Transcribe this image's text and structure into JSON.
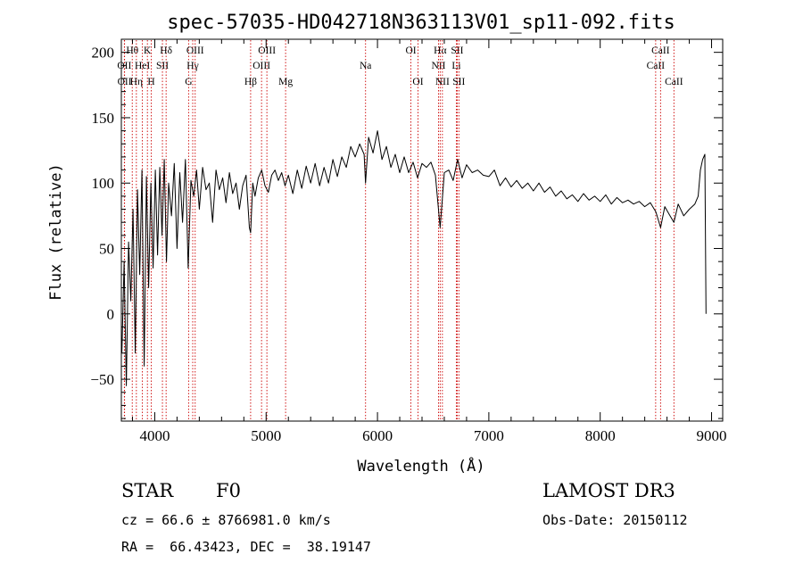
{
  "chart_data": {
    "type": "line",
    "title": "spec-57035-HD042718N363113V01_sp11-092.fits",
    "xlabel": "Wavelength (Å)",
    "ylabel": "Flux (relative)",
    "xlim": [
      3700,
      9100
    ],
    "ylim": [
      -82,
      210
    ],
    "xticks": [
      4000,
      5000,
      6000,
      7000,
      8000,
      9000
    ],
    "xtick_labels": [
      "4000",
      "5000",
      "6000",
      "7000",
      "8000",
      "9000"
    ],
    "yticks": [
      -50,
      0,
      50,
      100,
      150,
      200
    ],
    "ytick_labels": [
      "−50",
      "0",
      "50",
      "100",
      "150",
      "200"
    ],
    "spectrum": {
      "wavelength": [
        3705,
        3725,
        3745,
        3765,
        3785,
        3805,
        3825,
        3845,
        3865,
        3885,
        3905,
        3925,
        3945,
        3965,
        3985,
        4005,
        4025,
        4045,
        4065,
        4085,
        4105,
        4125,
        4150,
        4175,
        4200,
        4225,
        4250,
        4275,
        4300,
        4325,
        4350,
        4375,
        4400,
        4430,
        4460,
        4490,
        4520,
        4550,
        4580,
        4610,
        4640,
        4670,
        4700,
        4730,
        4760,
        4790,
        4820,
        4850,
        4861,
        4880,
        4900,
        4930,
        4960,
        4990,
        5020,
        5050,
        5080,
        5110,
        5140,
        5170,
        5200,
        5240,
        5280,
        5320,
        5360,
        5400,
        5440,
        5480,
        5520,
        5560,
        5600,
        5640,
        5680,
        5720,
        5760,
        5800,
        5840,
        5880,
        5893,
        5920,
        5960,
        6000,
        6040,
        6080,
        6120,
        6160,
        6200,
        6240,
        6280,
        6320,
        6360,
        6400,
        6440,
        6480,
        6520,
        6563,
        6600,
        6640,
        6680,
        6720,
        6760,
        6800,
        6850,
        6900,
        6950,
        7000,
        7050,
        7100,
        7150,
        7200,
        7250,
        7300,
        7350,
        7400,
        7450,
        7500,
        7550,
        7600,
        7650,
        7700,
        7750,
        7800,
        7850,
        7900,
        7950,
        8000,
        8050,
        8100,
        8150,
        8200,
        8250,
        8300,
        8350,
        8400,
        8450,
        8500,
        8542,
        8580,
        8620,
        8662,
        8700,
        8750,
        8800,
        8850,
        8880,
        8900,
        8920,
        8940,
        8950
      ],
      "flux": [
        -30,
        40,
        -55,
        55,
        10,
        80,
        -30,
        95,
        30,
        110,
        -40,
        105,
        20,
        100,
        35,
        110,
        45,
        112,
        60,
        118,
        40,
        100,
        75,
        115,
        50,
        108,
        70,
        118,
        35,
        102,
        90,
        110,
        80,
        112,
        95,
        100,
        70,
        110,
        95,
        104,
        85,
        108,
        92,
        100,
        80,
        98,
        106,
        66,
        62,
        100,
        90,
        104,
        110,
        98,
        93,
        106,
        110,
        102,
        108,
        98,
        106,
        92,
        110,
        96,
        113,
        100,
        115,
        98,
        112,
        100,
        118,
        105,
        120,
        112,
        128,
        120,
        130,
        122,
        100,
        135,
        123,
        140,
        118,
        128,
        112,
        122,
        108,
        120,
        108,
        116,
        104,
        115,
        112,
        116,
        106,
        66,
        108,
        110,
        102,
        118,
        104,
        114,
        108,
        110,
        106,
        105,
        110,
        98,
        104,
        97,
        102,
        96,
        100,
        94,
        100,
        93,
        97,
        90,
        94,
        88,
        91,
        86,
        92,
        87,
        90,
        86,
        91,
        84,
        89,
        85,
        87,
        84,
        86,
        82,
        85,
        78,
        66,
        82,
        76,
        70,
        84,
        75,
        80,
        84,
        90,
        110,
        118,
        122,
        0
      ],
      "color": "#000000"
    },
    "lines": [
      {
        "label": "Hθ",
        "wl": 3798,
        "row": 0
      },
      {
        "label": "OII",
        "wl": 3727,
        "row": 1
      },
      {
        "label": "OII",
        "wl": 3729,
        "row": 2
      },
      {
        "label": "Hη",
        "wl": 3835,
        "row": 2
      },
      {
        "label": "HeI",
        "wl": 3889,
        "row": 1
      },
      {
        "label": "K",
        "wl": 3934,
        "row": 0
      },
      {
        "label": "H",
        "wl": 3969,
        "row": 2
      },
      {
        "label": "SII",
        "wl": 4069,
        "row": 1
      },
      {
        "label": "Hδ",
        "wl": 4102,
        "row": 0
      },
      {
        "label": "G",
        "wl": 4304,
        "row": 2
      },
      {
        "label": "Hγ",
        "wl": 4341,
        "row": 1
      },
      {
        "label": "OIII",
        "wl": 4363,
        "row": 0
      },
      {
        "label": "Hβ",
        "wl": 4861,
        "row": 2
      },
      {
        "label": "OIII",
        "wl": 4959,
        "row": 1
      },
      {
        "label": "OIII",
        "wl": 5007,
        "row": 0
      },
      {
        "label": "Mg",
        "wl": 5175,
        "row": 2
      },
      {
        "label": "Na",
        "wl": 5893,
        "row": 1
      },
      {
        "label": "OI",
        "wl": 6300,
        "row": 0
      },
      {
        "label": "OI",
        "wl": 6364,
        "row": 2
      },
      {
        "label": "NII",
        "wl": 6548,
        "row": 1
      },
      {
        "label": "Hα",
        "wl": 6563,
        "row": 0
      },
      {
        "label": "NII",
        "wl": 6583,
        "row": 2
      },
      {
        "label": "SII",
        "wl": 6716,
        "row": 0
      },
      {
        "label": "Li",
        "wl": 6708,
        "row": 1
      },
      {
        "label": "SII",
        "wl": 6731,
        "row": 2
      },
      {
        "label": "CaII",
        "wl": 8498,
        "row": 1
      },
      {
        "label": "CaII",
        "wl": 8542,
        "row": 0
      },
      {
        "label": "CaII",
        "wl": 8662,
        "row": 2
      }
    ],
    "line_color": "#cc0000"
  },
  "info": {
    "class": "STAR",
    "subclass": "F0",
    "survey": "LAMOST DR3",
    "cz": "cz = 66.6 ± 8766981.0 km/s",
    "obs_date": "Obs-Date: 20150112",
    "coords": "RA =  66.43423, DEC =  38.19147"
  }
}
